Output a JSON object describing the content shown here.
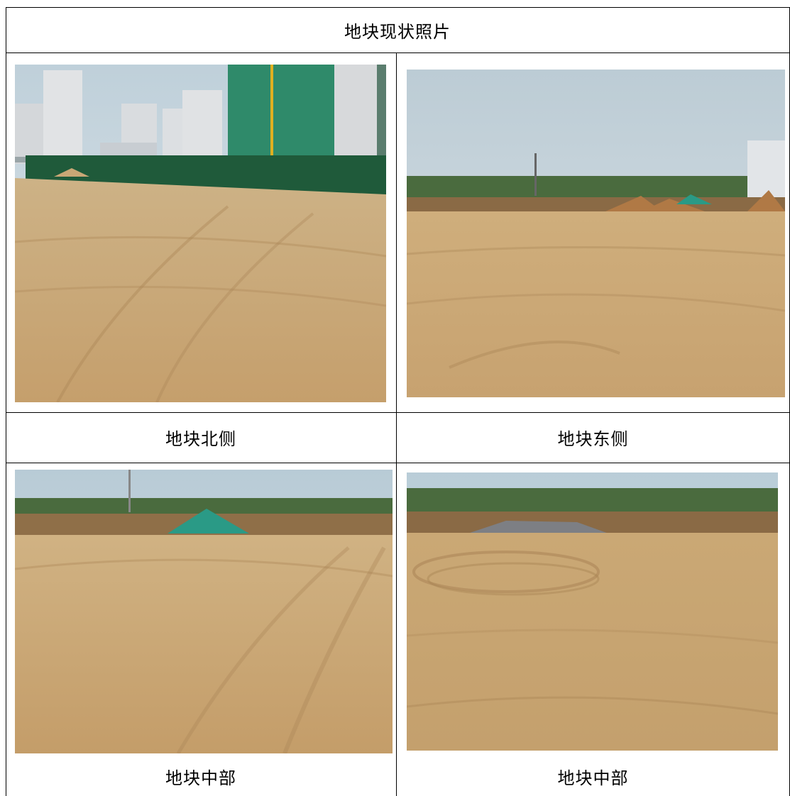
{
  "header": {
    "title": "地块现状照片"
  },
  "photos": [
    {
      "caption": "地块北侧"
    },
    {
      "caption": "地块东侧"
    },
    {
      "caption": "地块中部"
    },
    {
      "caption": "地块中部"
    }
  ],
  "colors": {
    "sky": "#c9d6dd",
    "soil": "#c9a776",
    "soil_dark": "#a98455",
    "fence_green": "#1f5a3a",
    "scaffold_green": "#2f8a6a",
    "trees": "#4a6b3e",
    "tarp": "#2a9a86"
  }
}
